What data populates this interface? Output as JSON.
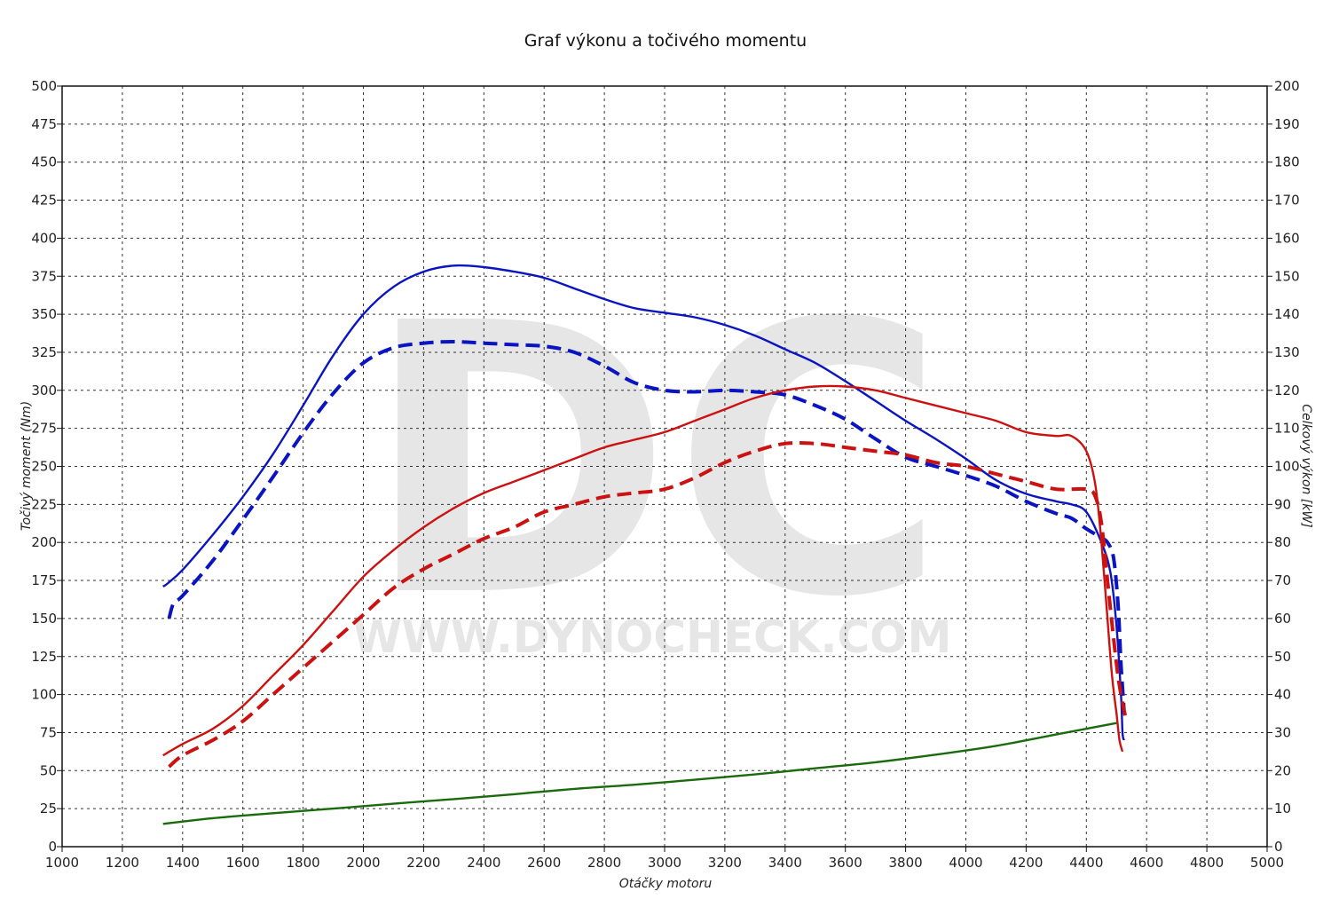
{
  "chart_data": {
    "type": "line",
    "title": "Graf výkonu a točivého momentu",
    "xlabel": "Otáčky motoru",
    "ylabel_left": "Točivý moment (Nm)",
    "ylabel_right": "Celkový výkon [kW]",
    "xlim": [
      1000,
      5000
    ],
    "ylim_left": [
      0,
      500
    ],
    "ylim_right": [
      0,
      200
    ],
    "x_ticks": [
      1000,
      1200,
      1400,
      1600,
      1800,
      2000,
      2200,
      2400,
      2600,
      2800,
      3000,
      3200,
      3400,
      3600,
      3800,
      4000,
      4200,
      4400,
      4600,
      4800,
      5000
    ],
    "y_ticks_left": [
      0,
      25,
      50,
      75,
      100,
      125,
      150,
      175,
      200,
      225,
      250,
      275,
      300,
      325,
      350,
      375,
      400,
      425,
      450,
      475,
      500
    ],
    "y_ticks_right": [
      0,
      10,
      20,
      30,
      40,
      50,
      60,
      70,
      80,
      90,
      100,
      110,
      120,
      130,
      140,
      150,
      160,
      170,
      180,
      190,
      200
    ],
    "grid": true,
    "watermark": {
      "letters": "DC",
      "url": "WWW.DYNOCHECK.COM"
    },
    "series": [
      {
        "axis": "left",
        "color": "#0a14c0",
        "dash": false,
        "x": [
          1335,
          1350,
          1400,
          1500,
          1600,
          1700,
          1800,
          1900,
          2000,
          2100,
          2200,
          2300,
          2400,
          2500,
          2600,
          2700,
          2800,
          2900,
          3000,
          3100,
          3200,
          3300,
          3400,
          3500,
          3600,
          3700,
          3800,
          3900,
          4000,
          4100,
          4200,
          4300,
          4350,
          4400,
          4450,
          4480,
          4500,
          4515,
          4520,
          4525
        ],
        "y": [
          171,
          173,
          182,
          205,
          230,
          258,
          290,
          323,
          350,
          368,
          378,
          382,
          381,
          378,
          374,
          367,
          360,
          354,
          351,
          348,
          343,
          336,
          327,
          318,
          306,
          293,
          280,
          268,
          255,
          241,
          232,
          227,
          225,
          220,
          200,
          180,
          145,
          100,
          75,
          70
        ]
      },
      {
        "axis": "left",
        "color": "#0a14c0",
        "dash": true,
        "x": [
          1355,
          1370,
          1400,
          1500,
          1600,
          1700,
          1800,
          1900,
          2000,
          2100,
          2200,
          2300,
          2400,
          2500,
          2600,
          2700,
          2800,
          2900,
          3000,
          3100,
          3200,
          3300,
          3400,
          3500,
          3600,
          3700,
          3800,
          3900,
          4000,
          4100,
          4200,
          4300,
          4350,
          4400,
          4450,
          4470,
          4490,
          4505,
          4515,
          4525
        ],
        "y": [
          150,
          160,
          165,
          188,
          215,
          243,
          272,
          298,
          318,
          328,
          331,
          332,
          331,
          330,
          329,
          325,
          316,
          305,
          300,
          299,
          300,
          299,
          297,
          290,
          281,
          268,
          256,
          250,
          244,
          237,
          227,
          219,
          216,
          209,
          203,
          200,
          190,
          160,
          120,
          90
        ]
      },
      {
        "axis": "right",
        "color": "#cc1111",
        "dash": false,
        "x": [
          1335,
          1400,
          1500,
          1600,
          1700,
          1800,
          1900,
          2000,
          2100,
          2200,
          2300,
          2400,
          2500,
          2600,
          2700,
          2800,
          2900,
          3000,
          3100,
          3200,
          3300,
          3400,
          3500,
          3600,
          3700,
          3800,
          3900,
          4000,
          4100,
          4200,
          4300,
          4350,
          4400,
          4430,
          4450,
          4470,
          4485,
          4500,
          4510,
          4520
        ],
        "y": [
          24,
          27,
          31,
          37,
          45,
          53,
          62,
          71,
          78,
          84,
          89,
          93,
          96,
          99,
          102,
          105,
          107,
          109,
          112,
          115,
          118,
          120,
          121,
          121,
          120,
          118,
          116,
          114,
          112,
          109,
          108,
          108,
          104,
          95,
          80,
          60,
          45,
          35,
          28,
          25
        ]
      },
      {
        "axis": "right",
        "color": "#cc1111",
        "dash": true,
        "x": [
          1355,
          1400,
          1500,
          1600,
          1700,
          1800,
          1900,
          2000,
          2100,
          2200,
          2300,
          2400,
          2500,
          2600,
          2700,
          2800,
          2900,
          3000,
          3100,
          3200,
          3300,
          3400,
          3500,
          3600,
          3700,
          3800,
          3900,
          4000,
          4100,
          4200,
          4300,
          4400,
          4430,
          4450,
          4470,
          4490,
          4505,
          4515,
          4525,
          4530
        ],
        "y": [
          21,
          24,
          28,
          33,
          40,
          47,
          54,
          61,
          68,
          73,
          77,
          81,
          84,
          88,
          90,
          92,
          93,
          94,
          97,
          101,
          104,
          106,
          106,
          105,
          104,
          103,
          101,
          100,
          98,
          96,
          94,
          94,
          92,
          85,
          70,
          55,
          45,
          40,
          36,
          34
        ]
      },
      {
        "axis": "right",
        "color": "#1a6b0d",
        "dash": false,
        "x": [
          1335,
          1500,
          1700,
          1900,
          2100,
          2300,
          2500,
          2700,
          2900,
          3100,
          3300,
          3500,
          3700,
          3900,
          4100,
          4300,
          4500
        ],
        "y": [
          6,
          7.5,
          8.8,
          10,
          11.3,
          12.5,
          13.8,
          15.2,
          16.3,
          17.6,
          19,
          20.6,
          22.2,
          24.2,
          26.5,
          29.5,
          32.5
        ]
      }
    ]
  }
}
